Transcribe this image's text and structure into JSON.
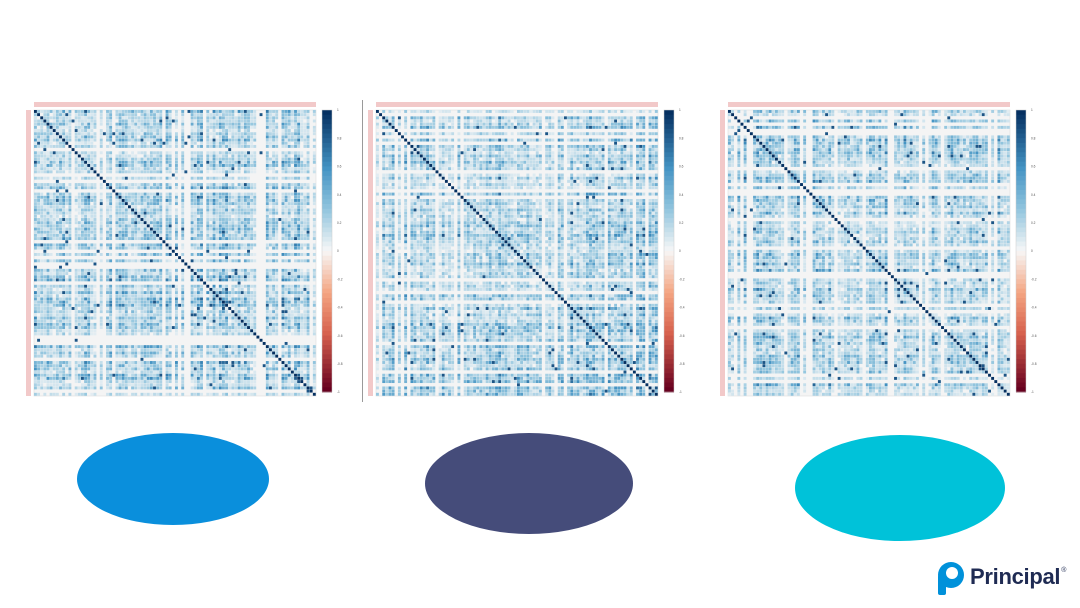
{
  "chart_data": [
    {
      "type": "heatmap",
      "title": "",
      "colormap": "RdBu",
      "vmin": -1,
      "vmax": 1,
      "colorbar_ticks": [
        "1",
        "0.8",
        "0.6",
        "0.4",
        "0.2",
        "0",
        "-0.2",
        "-0.4",
        "-0.6",
        "-0.8",
        "-1"
      ],
      "n_variables": 90,
      "diagonal_value": 1,
      "seed": 17
    },
    {
      "type": "heatmap",
      "title": "",
      "colormap": "RdBu",
      "vmin": -1,
      "vmax": 1,
      "colorbar_ticks": [
        "1",
        "0.8",
        "0.6",
        "0.4",
        "0.2",
        "0",
        "-0.2",
        "-0.4",
        "-0.6",
        "-0.8",
        "-1"
      ],
      "n_variables": 90,
      "diagonal_value": 1,
      "seed": 53
    },
    {
      "type": "heatmap",
      "title": "",
      "colormap": "RdBu",
      "vmin": -1,
      "vmax": 1,
      "colorbar_ticks": [
        "1",
        "0.8",
        "0.6",
        "0.4",
        "0.2",
        "0",
        "-0.2",
        "-0.4",
        "-0.6",
        "-0.8",
        "-1"
      ],
      "n_variables": 90,
      "diagonal_value": 1,
      "seed": 91
    }
  ],
  "shapes": [
    {
      "name": "blue-ellipse",
      "color": "#0a8fdc"
    },
    {
      "name": "navy-ellipse",
      "color": "#454c7a"
    },
    {
      "name": "cyan-ellipse",
      "color": "#00c2d9"
    }
  ],
  "brand": {
    "name": "Principal",
    "mark": "®",
    "color": "#1f2b53",
    "icon_color": "#0091da"
  }
}
